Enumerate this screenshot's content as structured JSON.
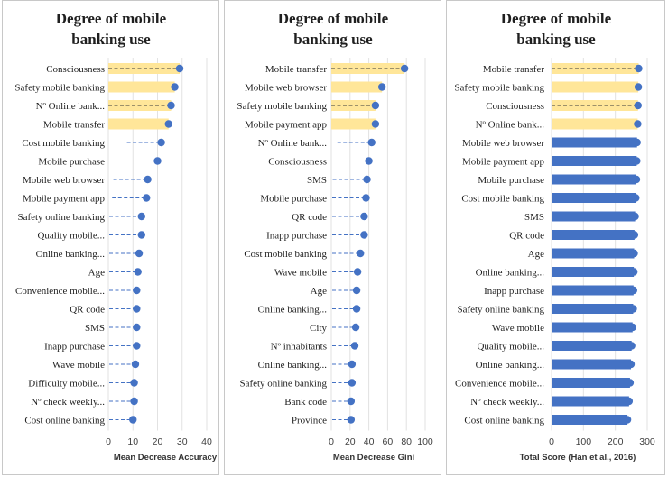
{
  "chart_data": [
    {
      "type": "lollipop",
      "title": "Degree of mobile banking use",
      "title_lines": [
        "Degree of mobile",
        "banking use"
      ],
      "xlabel": "Mean Decrease Accuracy",
      "xlim": [
        0,
        40
      ],
      "xticks": [
        "0",
        "10",
        "20",
        "30",
        "40"
      ],
      "categories": [
        "Consciousness",
        "Safety mobile banking",
        "Nº Online bank...",
        "Mobile transfer",
        "Cost mobile banking",
        "Mobile purchase",
        "Mobile web browser",
        "Mobile payment app",
        "Safety online banking",
        "Quality mobile...",
        "Online banking...",
        "Age",
        "Convenience mobile...",
        "QR code",
        "SMS",
        "Inapp purchase",
        "Wave mobile",
        "Difficulty mobile...",
        "Nº check weekly...",
        "Cost online banking"
      ],
      "values": [
        29,
        27,
        25.5,
        24.5,
        21.5,
        20,
        16,
        15.5,
        13.5,
        13.5,
        12.5,
        12,
        11.5,
        11.5,
        11.5,
        11.5,
        11,
        10.5,
        10.5,
        10
      ],
      "highlighted": 4,
      "colors": {
        "marker": "#4472c4",
        "highlight": "#ffe699",
        "dash": "#4472c4"
      }
    },
    {
      "type": "lollipop",
      "title": "Degree of mobile banking use",
      "title_lines": [
        "Degree of mobile",
        "banking use"
      ],
      "xlabel": "Mean Decrease Gini",
      "xlim": [
        0,
        100
      ],
      "xticks": [
        "0",
        "20",
        "40",
        "60",
        "80",
        "100"
      ],
      "categories": [
        "Mobile transfer",
        "Mobile web browser",
        "Safety mobile banking",
        "Mobile payment app",
        "Nº Online bank...",
        "Consciousness",
        "SMS",
        "Mobile purchase",
        "QR code",
        "Inapp purchase",
        "Cost mobile banking",
        "Wave mobile",
        "Age",
        "Online banking...",
        "City",
        "Nº inhabitants",
        "Online banking...",
        "Safety online banking",
        "Bank code",
        "Province"
      ],
      "values": [
        78,
        54,
        47,
        47,
        43,
        40,
        38,
        37,
        35,
        35,
        31,
        28,
        27,
        27,
        26,
        25,
        22,
        22,
        21,
        21
      ],
      "highlighted": 4,
      "colors": {
        "marker": "#4472c4",
        "highlight": "#ffe699",
        "dash": "#4472c4"
      }
    },
    {
      "type": "bar",
      "title": "Degree of mobile banking use",
      "title_lines": [
        "Degree of mobile",
        "banking use"
      ],
      "xlabel": "Total Score (Han et al., 2016)",
      "xlim": [
        0,
        300
      ],
      "xticks": [
        "0",
        "100",
        "200",
        "300"
      ],
      "categories": [
        "Mobile transfer",
        "Safety mobile banking",
        "Consciousness",
        "Nº Online bank...",
        "Mobile web browser",
        "Mobile payment app",
        "Mobile purchase",
        "Cost mobile banking",
        "SMS",
        "QR code",
        "Age",
        "Online banking...",
        "Inapp purchase",
        "Safety online banking",
        "Wave mobile",
        "Quality mobile...",
        "Online banking...",
        "Convenience mobile...",
        "Nº check weekly...",
        "Cost online banking"
      ],
      "values": [
        273,
        272,
        271,
        270,
        268,
        267,
        266,
        264,
        262,
        260,
        259,
        258,
        257,
        256,
        254,
        251,
        249,
        246,
        243,
        238
      ],
      "highlighted": 4,
      "colors": {
        "marker": "#4472c4",
        "highlight": "#ffe699",
        "dash": "#4472c4"
      }
    }
  ]
}
